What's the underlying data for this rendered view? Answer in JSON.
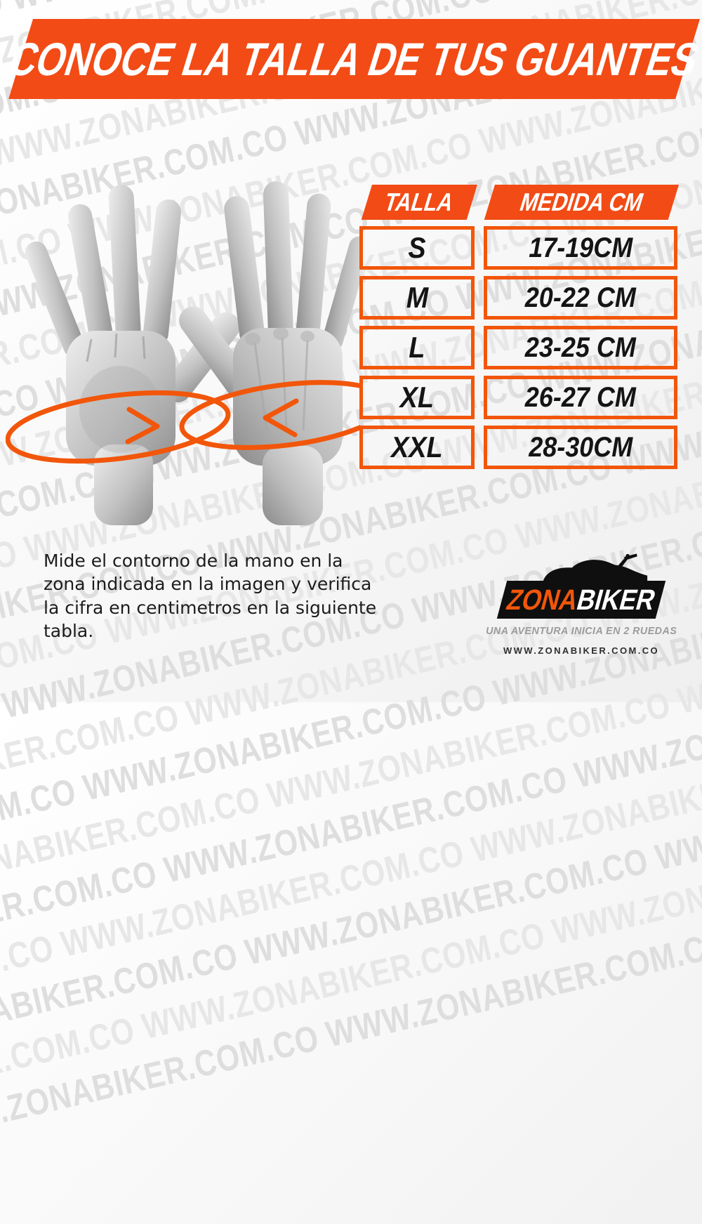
{
  "colors": {
    "orange": "#f24b15",
    "border_orange": "#f2560a",
    "black": "#0f0f0f",
    "text_dark": "#141414",
    "tagline_gray": "#9b9b9b",
    "watermark_gray": "#e7e7e7"
  },
  "watermark": {
    "text": "WWW.ZONABIKER.COM.CO "
  },
  "title": {
    "text": "CONOCE LA TALLA DE TUS GUANTES"
  },
  "size_table": {
    "headers": [
      "TALLA",
      "MEDIDA CM"
    ],
    "rows": [
      {
        "size": "S",
        "measure": "17-19CM"
      },
      {
        "size": "M",
        "measure": "20-22 CM"
      },
      {
        "size": "L",
        "measure": "23-25 CM"
      },
      {
        "size": "XL",
        "measure": "26-27 CM"
      },
      {
        "size": "XXL",
        "measure": "28-30CM"
      }
    ]
  },
  "instructions": {
    "text": "Mide el contorno de la mano en la\nzona indicada en la imagen y verifica\nla cifra en centimetros en la siguiente\ntabla."
  },
  "brand": {
    "name_part1": "ZONA",
    "name_part2": "BIKER",
    "tagline": "UNA AVENTURA INICIA EN 2 RUEDAS",
    "url": "WWW.ZONABIKER.COM.CO"
  }
}
